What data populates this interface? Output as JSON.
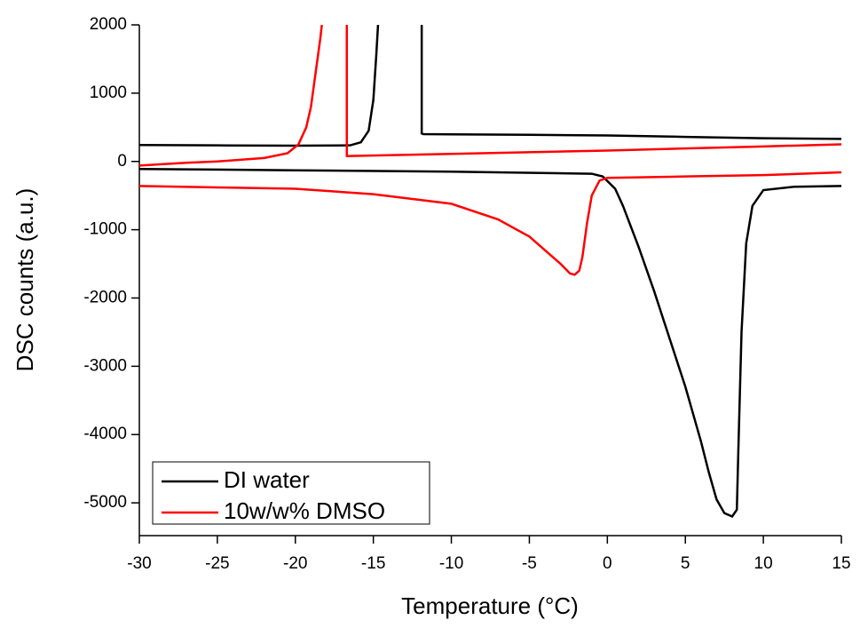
{
  "chart_data": {
    "type": "line",
    "xlabel": "Temperature (°C)",
    "ylabel": "DSC counts (a.u.)",
    "xlim": [
      -30,
      15
    ],
    "xticks": [
      -30,
      -25,
      -20,
      -15,
      -10,
      -5,
      0,
      5,
      10,
      15
    ],
    "ylim": [
      -5480,
      2000
    ],
    "yticks": [
      2000,
      1000,
      0,
      -1000,
      -2000,
      -3000,
      -4000,
      -5000
    ],
    "legend": "lower left",
    "series": [
      {
        "name": "DI water",
        "color": "#000000",
        "x": [
          -30,
          -25,
          -20,
          -16.5,
          -15.8,
          -15.3,
          -15,
          -14.8,
          -14.7,
          null,
          -11.9,
          -11.9,
          -11.8,
          -5,
          0,
          5,
          10,
          15,
          null,
          -30,
          -20,
          -10,
          -1,
          -0.3,
          0.5,
          1,
          2,
          3,
          4,
          5,
          6,
          6.5,
          7,
          7.5,
          8,
          8.3,
          8.4,
          8.6,
          8.9,
          9.3,
          10,
          12,
          15
        ],
        "values": [
          240,
          235,
          230,
          235,
          280,
          450,
          900,
          1600,
          2000,
          null,
          2000,
          410,
          400,
          390,
          380,
          360,
          340,
          330,
          null,
          -110,
          -130,
          -150,
          -180,
          -220,
          -400,
          -650,
          -1250,
          -1900,
          -2600,
          -3300,
          -4100,
          -4550,
          -4950,
          -5150,
          -5200,
          -5100,
          -4200,
          -2500,
          -1200,
          -650,
          -420,
          -370,
          -360
        ]
      },
      {
        "name": "10w/w% DMSO",
        "color": "#ff0000",
        "x": [
          -30,
          -27,
          -25,
          -22,
          -20.5,
          -19.8,
          -19.3,
          -19,
          -18.7,
          -18.4,
          -18.3,
          null,
          -16.7,
          -16.7,
          -16.5,
          -10,
          0,
          5,
          10,
          15,
          null,
          -30,
          -25,
          -20,
          -15,
          -10,
          -7,
          -5,
          -4,
          -3,
          -2.4,
          -2.1,
          -1.8,
          -1.6,
          -1.3,
          -1,
          -0.5,
          0,
          5,
          10,
          15
        ],
        "values": [
          -60,
          -20,
          0,
          50,
          120,
          250,
          500,
          800,
          1300,
          1800,
          2000,
          null,
          2000,
          80,
          80,
          110,
          160,
          190,
          220,
          250,
          null,
          -360,
          -380,
          -400,
          -480,
          -620,
          -850,
          -1100,
          -1300,
          -1500,
          -1640,
          -1660,
          -1600,
          -1400,
          -900,
          -500,
          -280,
          -240,
          -220,
          -200,
          -160
        ]
      }
    ]
  }
}
